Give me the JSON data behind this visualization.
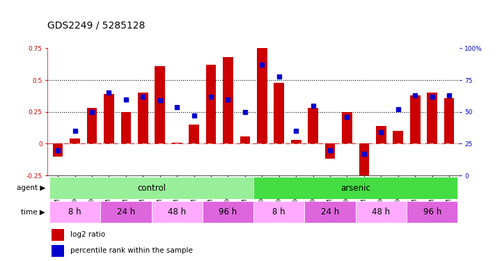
{
  "title": "GDS2249 / 5285128",
  "samples": [
    "GSM67029",
    "GSM67030",
    "GSM67031",
    "GSM67023",
    "GSM67024",
    "GSM67025",
    "GSM67026",
    "GSM67027",
    "GSM67028",
    "GSM67032",
    "GSM67033",
    "GSM67034",
    "GSM67017",
    "GSM67018",
    "GSM67019",
    "GSM67011",
    "GSM67012",
    "GSM67013",
    "GSM67014",
    "GSM67015",
    "GSM67016",
    "GSM67020",
    "GSM67021",
    "GSM67022"
  ],
  "log2_ratio": [
    -0.1,
    0.04,
    0.28,
    0.39,
    0.25,
    0.4,
    0.61,
    0.01,
    0.15,
    0.62,
    0.68,
    0.06,
    0.75,
    0.48,
    0.03,
    0.28,
    -0.12,
    0.25,
    -0.32,
    0.14,
    0.1,
    0.38,
    0.4,
    0.36
  ],
  "percentile": [
    20,
    35,
    50,
    65,
    60,
    62,
    59,
    54,
    47,
    62,
    60,
    50,
    87,
    78,
    35,
    55,
    20,
    46,
    17,
    34,
    52,
    63,
    62,
    63
  ],
  "agent_groups": [
    {
      "label": "control",
      "start": 0,
      "end": 12,
      "color": "#99EE99"
    },
    {
      "label": "arsenic",
      "start": 12,
      "end": 24,
      "color": "#44DD44"
    }
  ],
  "time_groups": [
    {
      "label": "8 h",
      "start": 0,
      "end": 3,
      "color": "#FFAAFF"
    },
    {
      "label": "24 h",
      "start": 3,
      "end": 6,
      "color": "#DD66DD"
    },
    {
      "label": "48 h",
      "start": 6,
      "end": 9,
      "color": "#FFAAFF"
    },
    {
      "label": "96 h",
      "start": 9,
      "end": 12,
      "color": "#DD66DD"
    },
    {
      "label": "8 h",
      "start": 12,
      "end": 15,
      "color": "#FFAAFF"
    },
    {
      "label": "24 h",
      "start": 15,
      "end": 18,
      "color": "#DD66DD"
    },
    {
      "label": "48 h",
      "start": 18,
      "end": 21,
      "color": "#FFAAFF"
    },
    {
      "label": "96 h",
      "start": 21,
      "end": 24,
      "color": "#DD66DD"
    }
  ],
  "bar_color": "#CC0000",
  "dot_color": "#0000CC",
  "ylim_left": [
    -0.25,
    0.75
  ],
  "ylim_right": [
    0,
    100
  ],
  "title_fontsize": 10,
  "tick_fontsize": 6.5,
  "label_fontsize": 8.5,
  "row_label_fontsize": 7.5
}
